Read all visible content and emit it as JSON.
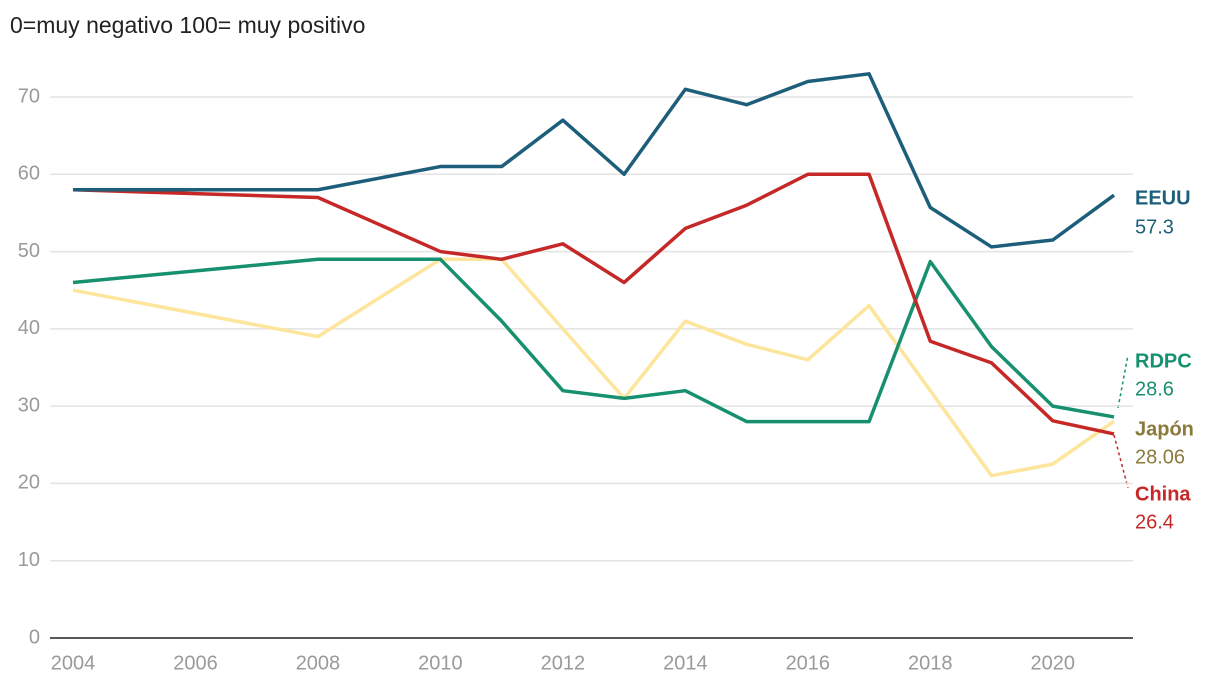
{
  "chart_data": {
    "type": "line",
    "title": "0=muy negativo 100= muy positivo",
    "x": [
      2004,
      2008,
      2010,
      2011,
      2012,
      2013,
      2014,
      2015,
      2016,
      2017,
      2018,
      2019,
      2020,
      2021
    ],
    "xlim": [
      2004,
      2021
    ],
    "xticks": [
      2004,
      2006,
      2008,
      2010,
      2012,
      2014,
      2016,
      2018,
      2020
    ],
    "ylim": [
      0,
      70
    ],
    "yticks": [
      0,
      10,
      20,
      30,
      40,
      50,
      60,
      70
    ],
    "grid": true,
    "series": [
      {
        "name": "Japón",
        "color": "#fde59c",
        "label_color": "#8b7a3c",
        "values": [
          45,
          39,
          49,
          49,
          40,
          31,
          41,
          38,
          36,
          43,
          32,
          21,
          22.5,
          28.06
        ]
      },
      {
        "name": "RDPC",
        "color": "#17906f",
        "label_color": "#17906f",
        "values": [
          46,
          49,
          49,
          41,
          32,
          31,
          32,
          28,
          28,
          28,
          48.7,
          37.7,
          30,
          28.6
        ]
      },
      {
        "name": "China",
        "color": "#c62828",
        "label_color": "#c62828",
        "values": [
          58,
          57,
          50,
          49,
          51,
          46,
          53,
          56,
          60,
          60,
          38.4,
          35.6,
          28.1,
          26.4
        ]
      },
      {
        "name": "EEUU",
        "color": "#1d5e7a",
        "label_color": "#1d5e7a",
        "values": [
          58,
          58,
          61,
          61,
          67,
          60,
          71,
          69,
          72,
          73,
          55.7,
          50.6,
          51.5,
          57.3
        ]
      }
    ]
  }
}
